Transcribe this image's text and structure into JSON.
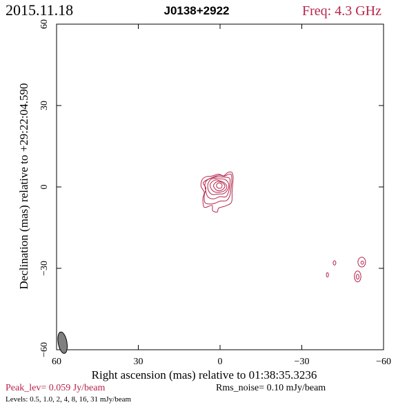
{
  "header": {
    "date": "2015.11.18",
    "source": "J0138+2922",
    "freq": "Freq: 4.3 GHz"
  },
  "axes": {
    "xlabel": "Right ascension (mas) relative to 01:38:35.3236",
    "ylabel": "Declination (mas) relative to +29:22:04.590",
    "x_ticks": [
      "60",
      "30",
      "0",
      "−30",
      "−60"
    ],
    "y_ticks": [
      "60",
      "30",
      "0",
      "−30",
      "−60"
    ]
  },
  "footer": {
    "peak": "Peak_lev=  0.059 Jy/beam",
    "rms": "Rms_noise= 0.10 mJy/beam",
    "levels": "Levels: 0.5, 1.0,    2,    4,    8,   16,   31 mJy/beam"
  },
  "colors": {
    "contour": "#b5244a",
    "text_accent": "#b5244a",
    "beam_fill": "#808080"
  },
  "chart_data": {
    "type": "contour",
    "xlim": [
      60,
      -60
    ],
    "ylim": [
      -60,
      60
    ],
    "x_tick_values": [
      60,
      30,
      0,
      -30,
      -60
    ],
    "y_tick_values": [
      60,
      30,
      0,
      -30,
      -60
    ],
    "units": "mas",
    "levels_mJy": [
      0.5,
      1.0,
      2,
      4,
      8,
      16,
      31
    ],
    "peak_Jy_per_beam": 0.059,
    "rms_mJy_per_beam": 0.1,
    "main_component": {
      "center": [
        0.5,
        0.5
      ],
      "contours": [
        {
          "level": 0.5,
          "points": [
            [
              7.0,
              0.3
            ],
            [
              6.5,
              2.8
            ],
            [
              5.0,
              3.8
            ],
            [
              3.0,
              4.0
            ],
            [
              0.5,
              4.7
            ],
            [
              -1.3,
              4.1
            ],
            [
              -2.8,
              5.3
            ],
            [
              -4.3,
              5.4
            ],
            [
              -4.8,
              3.5
            ],
            [
              -4.6,
              0.8
            ],
            [
              -4.4,
              -1.8
            ],
            [
              -4.2,
              -5.6
            ],
            [
              -2.0,
              -7.0
            ],
            [
              0.5,
              -7.8
            ],
            [
              1.0,
              -9.2
            ],
            [
              2.7,
              -8.8
            ],
            [
              3.0,
              -6.8
            ],
            [
              5.8,
              -7.5
            ],
            [
              6.3,
              -4.3
            ],
            [
              5.8,
              -2.0
            ]
          ]
        },
        {
          "level": 1.0,
          "points": [
            [
              6.2,
              1.4
            ],
            [
              5.2,
              2.4
            ],
            [
              3.0,
              3.4
            ],
            [
              0.4,
              4.3
            ],
            [
              -1.6,
              4.0
            ],
            [
              -3.0,
              4.6
            ],
            [
              -4.1,
              4.6
            ],
            [
              -4.3,
              2.3
            ],
            [
              -4.0,
              -0.5
            ],
            [
              -3.6,
              -3.2
            ],
            [
              -2.4,
              -5.0
            ],
            [
              -0.1,
              -5.2
            ],
            [
              1.6,
              -5.9
            ],
            [
              3.5,
              -6.3
            ],
            [
              5.5,
              -5.8
            ],
            [
              5.8,
              -3.2
            ],
            [
              5.2,
              -0.5
            ]
          ]
        },
        {
          "level": 2,
          "points": [
            [
              5.5,
              1.4
            ],
            [
              4.0,
              3.0
            ],
            [
              1.0,
              3.7
            ],
            [
              -1.6,
              3.6
            ],
            [
              -3.5,
              3.2
            ],
            [
              -3.6,
              0.8
            ],
            [
              -3.2,
              -1.6
            ],
            [
              -2.2,
              -3.6
            ],
            [
              0.0,
              -3.6
            ],
            [
              2.5,
              -4.4
            ],
            [
              4.5,
              -3.6
            ],
            [
              5.3,
              -1.2
            ]
          ]
        },
        {
          "level": 4,
          "points": [
            [
              4.3,
              1.5
            ],
            [
              3.0,
              3.0
            ],
            [
              0.6,
              3.0
            ],
            [
              -1.7,
              2.8
            ],
            [
              -3.1,
              1.3
            ],
            [
              -3.0,
              -0.6
            ],
            [
              -1.5,
              -2.4
            ],
            [
              0.6,
              -2.6
            ],
            [
              2.8,
              -2.8
            ],
            [
              4.0,
              -1.8
            ],
            [
              4.5,
              -0.4
            ]
          ]
        },
        {
          "level": 8,
          "points": [
            [
              3.6,
              1.0
            ],
            [
              2.0,
              2.5
            ],
            [
              0.2,
              2.3
            ],
            [
              -1.6,
              1.5
            ],
            [
              -2.5,
              0.0
            ],
            [
              -1.6,
              -1.4
            ],
            [
              0.0,
              -1.9
            ],
            [
              1.7,
              -1.9
            ],
            [
              3.1,
              -0.9
            ]
          ]
        },
        {
          "level": 16,
          "points": [
            [
              2.4,
              0.5
            ],
            [
              1.2,
              1.9
            ],
            [
              -0.6,
              1.7
            ],
            [
              -1.8,
              0.3
            ],
            [
              -0.6,
              -1.2
            ],
            [
              1.3,
              -1.2
            ]
          ]
        },
        {
          "level": 31,
          "points": [
            [
              1.3,
              0.7
            ],
            [
              0.5,
              1.5
            ],
            [
              -0.7,
              0.9
            ],
            [
              -0.4,
              -0.4
            ],
            [
              0.9,
              -0.3
            ]
          ]
        }
      ]
    },
    "minor_components": [
      {
        "center": [
          -52.0,
          -27.7
        ],
        "rx": 1.4,
        "ry": 1.8
      },
      {
        "center": [
          -52.2,
          -27.9
        ],
        "rx": 0.5,
        "ry": 0.6
      },
      {
        "center": [
          -50.5,
          -33.0
        ],
        "rx": 1.2,
        "ry": 2.0
      },
      {
        "center": [
          -50.5,
          -33.1
        ],
        "rx": 0.5,
        "ry": 0.9
      },
      {
        "center": [
          -42.0,
          -28.0
        ],
        "rx": 0.5,
        "ry": 0.8
      },
      {
        "center": [
          -39.4,
          -32.4
        ],
        "rx": 0.4,
        "ry": 0.8
      }
    ],
    "beam": {
      "center": [
        57.8,
        -57.4
      ],
      "major": 4.0,
      "minor": 1.6,
      "pa_deg": -10
    }
  }
}
